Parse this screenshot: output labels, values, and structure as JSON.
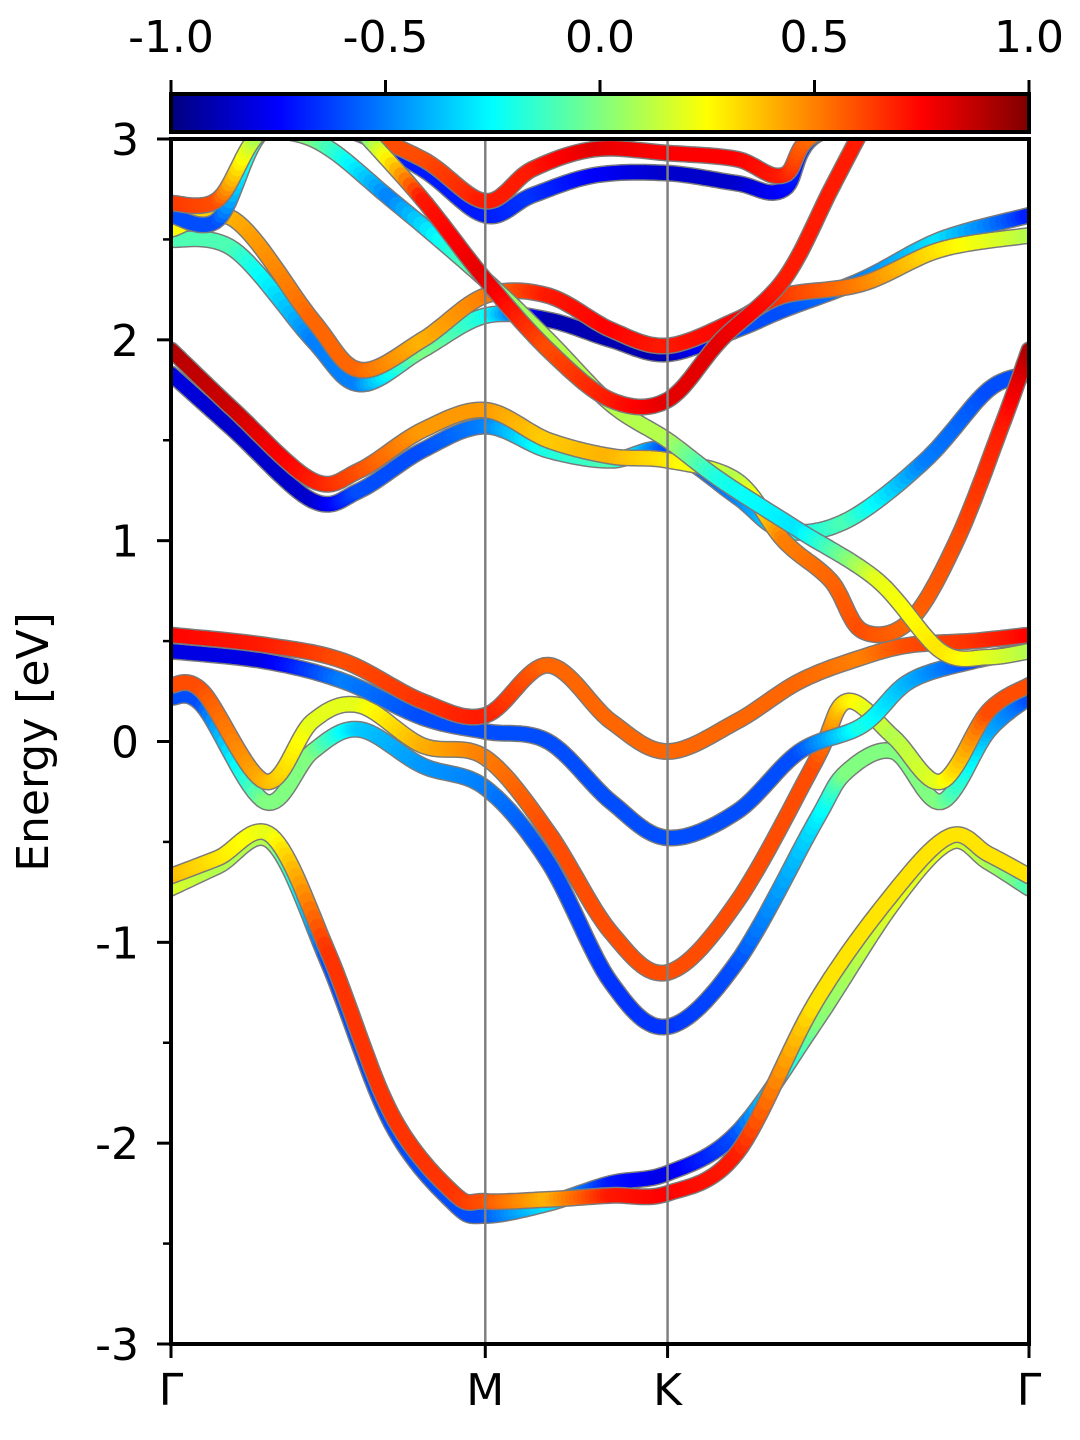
{
  "chart_data": {
    "type": "line",
    "title": "",
    "ylabel": "Energy [eV]",
    "xlabel": "",
    "ylim": [
      -3,
      3
    ],
    "y_ticks": [
      -3,
      -2,
      -1,
      0,
      1,
      2,
      3
    ],
    "y_minor_ticks": [
      -2.5,
      -1.5,
      -0.5,
      0.5,
      1.5,
      2.5
    ],
    "y_tick_labels": [
      "-3",
      "-2",
      "-1",
      "0",
      "1",
      "2",
      "3"
    ],
    "x_path_positions": [
      0,
      1.0,
      1.58,
      2.73
    ],
    "x_tick_labels": [
      "Γ",
      "M",
      "K",
      "Γ"
    ],
    "high_symmetry_lines": [
      1.0,
      1.58
    ],
    "colorbar": {
      "colormap": "jet",
      "range": [
        -1.0,
        1.0
      ],
      "ticks": [
        -1.0,
        -0.5,
        0.0,
        0.5,
        1.0
      ],
      "tick_labels": [
        "-1.0",
        "-0.5",
        "0.0",
        "0.5",
        "1.0"
      ]
    },
    "series": [
      {
        "points": [
          [
            0,
            -0.73
          ],
          [
            0.15,
            -0.62
          ],
          [
            0.32,
            -0.5
          ],
          [
            0.5,
            -1.1
          ],
          [
            0.7,
            -1.9
          ],
          [
            0.9,
            -2.3
          ],
          [
            1.0,
            -2.36
          ],
          [
            1.2,
            -2.3
          ],
          [
            1.4,
            -2.2
          ],
          [
            1.58,
            -2.15
          ],
          [
            1.8,
            -1.95
          ],
          [
            2.05,
            -1.4
          ],
          [
            2.3,
            -0.8
          ],
          [
            2.48,
            -0.5
          ],
          [
            2.6,
            -0.6
          ],
          [
            2.73,
            -0.73
          ]
        ],
        "weights": [
          0.2,
          0.1,
          0.1,
          -0.6,
          -0.6,
          -0.6,
          -0.6,
          -0.3,
          -0.7,
          -0.8,
          -0.6,
          0.0,
          0.2,
          0.2,
          0.1,
          -0.1
        ]
      },
      {
        "points": [
          [
            0,
            -0.67
          ],
          [
            0.15,
            -0.58
          ],
          [
            0.32,
            -0.47
          ],
          [
            0.5,
            -1.05
          ],
          [
            0.7,
            -1.85
          ],
          [
            0.9,
            -2.25
          ],
          [
            1.0,
            -2.29
          ],
          [
            1.2,
            -2.28
          ],
          [
            1.4,
            -2.26
          ],
          [
            1.58,
            -2.25
          ],
          [
            1.8,
            -2.05
          ],
          [
            2.05,
            -1.3
          ],
          [
            2.3,
            -0.75
          ],
          [
            2.48,
            -0.47
          ],
          [
            2.6,
            -0.56
          ],
          [
            2.73,
            -0.67
          ]
        ],
        "weights": [
          0.4,
          0.3,
          0.2,
          0.65,
          0.65,
          0.65,
          0.6,
          0.4,
          0.7,
          0.75,
          0.7,
          0.3,
          0.3,
          0.3,
          0.3,
          0.3
        ]
      },
      {
        "points": [
          [
            0,
            0.22
          ],
          [
            0.1,
            0.18
          ],
          [
            0.3,
            -0.3
          ],
          [
            0.45,
            -0.05
          ],
          [
            0.6,
            0.06
          ],
          [
            0.8,
            -0.12
          ],
          [
            1.0,
            -0.23
          ],
          [
            1.2,
            -0.6
          ],
          [
            1.4,
            -1.2
          ],
          [
            1.58,
            -1.42
          ],
          [
            1.8,
            -1.1
          ],
          [
            2.05,
            -0.4
          ],
          [
            2.15,
            -0.15
          ],
          [
            2.3,
            -0.05
          ],
          [
            2.45,
            -0.3
          ],
          [
            2.6,
            0.05
          ],
          [
            2.73,
            0.22
          ]
        ],
        "weights": [
          -0.6,
          -0.6,
          0.0,
          0.0,
          -0.35,
          -0.45,
          -0.5,
          -0.6,
          -0.65,
          -0.65,
          -0.6,
          -0.3,
          0.0,
          0.0,
          0.0,
          -0.4,
          -0.6
        ]
      },
      {
        "points": [
          [
            0,
            0.28
          ],
          [
            0.1,
            0.25
          ],
          [
            0.3,
            -0.2
          ],
          [
            0.45,
            0.1
          ],
          [
            0.6,
            0.18
          ],
          [
            0.8,
            -0.02
          ],
          [
            1.0,
            -0.08
          ],
          [
            1.2,
            -0.45
          ],
          [
            1.4,
            -0.95
          ],
          [
            1.58,
            -1.15
          ],
          [
            1.8,
            -0.8
          ],
          [
            2.05,
            -0.1
          ],
          [
            2.15,
            0.2
          ],
          [
            2.3,
            0.02
          ],
          [
            2.45,
            -0.2
          ],
          [
            2.6,
            0.15
          ],
          [
            2.73,
            0.28
          ]
        ],
        "weights": [
          0.6,
          0.6,
          0.4,
          0.2,
          0.2,
          0.4,
          0.5,
          0.6,
          0.6,
          0.6,
          0.6,
          0.6,
          0.3,
          0.1,
          0.2,
          0.6,
          0.6
        ]
      },
      {
        "points": [
          [
            0,
            0.45
          ],
          [
            0.3,
            0.4
          ],
          [
            0.55,
            0.3
          ],
          [
            0.8,
            0.12
          ],
          [
            1.0,
            0.05
          ],
          [
            1.2,
            0.0
          ],
          [
            1.4,
            -0.3
          ],
          [
            1.58,
            -0.48
          ],
          [
            1.8,
            -0.35
          ],
          [
            2.0,
            -0.05
          ],
          [
            2.2,
            0.08
          ],
          [
            2.35,
            0.3
          ],
          [
            2.55,
            0.4
          ],
          [
            2.73,
            0.45
          ]
        ],
        "weights": [
          -0.8,
          -0.8,
          -0.5,
          -0.6,
          -0.6,
          -0.6,
          -0.6,
          -0.6,
          -0.6,
          -0.6,
          -0.2,
          -0.4,
          -0.6,
          -0.8
        ]
      },
      {
        "points": [
          [
            0,
            0.53
          ],
          [
            0.3,
            0.48
          ],
          [
            0.55,
            0.4
          ],
          [
            0.8,
            0.2
          ],
          [
            1.0,
            0.13
          ],
          [
            1.2,
            0.38
          ],
          [
            1.4,
            0.1
          ],
          [
            1.58,
            -0.05
          ],
          [
            1.8,
            0.1
          ],
          [
            2.0,
            0.3
          ],
          [
            2.2,
            0.42
          ],
          [
            2.35,
            0.48
          ],
          [
            2.55,
            0.5
          ],
          [
            2.73,
            0.53
          ]
        ],
        "weights": [
          0.75,
          0.7,
          0.6,
          0.65,
          0.7,
          0.55,
          0.55,
          0.55,
          0.55,
          0.55,
          0.5,
          0.6,
          0.65,
          0.75
        ]
      },
      {
        "points": [
          [
            0,
            1.83
          ],
          [
            0.2,
            1.55
          ],
          [
            0.45,
            1.2
          ],
          [
            0.6,
            1.25
          ],
          [
            0.8,
            1.45
          ],
          [
            1.0,
            1.57
          ],
          [
            1.2,
            1.45
          ],
          [
            1.4,
            1.4
          ],
          [
            1.58,
            1.45
          ],
          [
            1.8,
            1.22
          ],
          [
            1.95,
            1.05
          ],
          [
            2.15,
            1.1
          ],
          [
            2.4,
            1.4
          ],
          [
            2.6,
            1.75
          ],
          [
            2.73,
            1.83
          ]
        ],
        "weights": [
          -0.8,
          -0.85,
          -0.85,
          -0.6,
          -0.6,
          -0.5,
          -0.2,
          -0.1,
          -0.6,
          -0.5,
          -0.3,
          -0.1,
          -0.5,
          -0.6,
          -0.6
        ]
      },
      {
        "points": [
          [
            0,
            1.95
          ],
          [
            0.2,
            1.65
          ],
          [
            0.45,
            1.3
          ],
          [
            0.6,
            1.35
          ],
          [
            0.8,
            1.55
          ],
          [
            1.0,
            1.65
          ],
          [
            1.2,
            1.5
          ],
          [
            1.4,
            1.42
          ],
          [
            1.58,
            1.4
          ],
          [
            1.8,
            1.3
          ],
          [
            1.95,
            1.0
          ],
          [
            2.1,
            0.8
          ],
          [
            2.2,
            0.55
          ],
          [
            2.35,
            0.6
          ],
          [
            2.5,
            1.0
          ],
          [
            2.65,
            1.6
          ],
          [
            2.73,
            1.95
          ]
        ],
        "weights": [
          0.9,
          0.85,
          0.7,
          0.6,
          0.45,
          0.45,
          0.35,
          0.4,
          0.3,
          0.1,
          0.5,
          0.55,
          0.6,
          0.55,
          0.6,
          0.7,
          0.9
        ]
      },
      {
        "points": [
          [
            0,
            2.5
          ],
          [
            0.2,
            2.45
          ],
          [
            0.45,
            2.0
          ],
          [
            0.6,
            1.78
          ],
          [
            0.8,
            1.95
          ],
          [
            1.0,
            2.12
          ],
          [
            1.2,
            2.1
          ],
          [
            1.4,
            2.0
          ],
          [
            1.58,
            1.93
          ],
          [
            1.8,
            2.05
          ],
          [
            1.95,
            2.15
          ],
          [
            2.2,
            2.3
          ],
          [
            2.45,
            2.5
          ],
          [
            2.73,
            2.62
          ]
        ],
        "weights": [
          -0.1,
          -0.1,
          -0.5,
          -0.5,
          0.0,
          -0.2,
          -0.9,
          -0.9,
          -0.9,
          -0.6,
          -0.6,
          -0.5,
          -0.3,
          -0.7
        ]
      },
      {
        "points": [
          [
            0,
            2.55
          ],
          [
            0.2,
            2.6
          ],
          [
            0.45,
            2.1
          ],
          [
            0.6,
            1.85
          ],
          [
            0.8,
            2.0
          ],
          [
            1.0,
            2.22
          ],
          [
            1.2,
            2.22
          ],
          [
            1.4,
            2.05
          ],
          [
            1.58,
            1.97
          ],
          [
            1.8,
            2.1
          ],
          [
            1.95,
            2.22
          ],
          [
            2.2,
            2.28
          ],
          [
            2.45,
            2.45
          ],
          [
            2.73,
            2.52
          ]
        ],
        "weights": [
          0.2,
          0.4,
          0.55,
          0.55,
          0.4,
          0.5,
          0.7,
          0.75,
          0.7,
          0.75,
          0.65,
          0.5,
          0.3,
          0.1
        ]
      },
      {
        "points": [
          [
            0,
            2.62
          ],
          [
            0.15,
            2.6
          ],
          [
            0.3,
            3.05
          ],
          [
            0.55,
            3.05
          ],
          [
            0.8,
            2.85
          ],
          [
            1.0,
            2.62
          ],
          [
            1.15,
            2.72
          ],
          [
            1.35,
            2.82
          ],
          [
            1.58,
            2.83
          ],
          [
            1.8,
            2.78
          ],
          [
            1.95,
            2.75
          ],
          [
            2.1,
            3.05
          ],
          [
            2.73,
            3.05
          ]
        ],
        "weights": [
          -0.6,
          -0.6,
          0.0,
          -0.7,
          -0.7,
          -0.7,
          -0.65,
          -0.75,
          -0.85,
          -0.85,
          -0.75,
          -0.6,
          -0.6
        ]
      },
      {
        "points": [
          [
            0,
            2.68
          ],
          [
            0.15,
            2.7
          ],
          [
            0.3,
            3.05
          ],
          [
            0.55,
            3.05
          ],
          [
            0.8,
            2.9
          ],
          [
            1.0,
            2.69
          ],
          [
            1.15,
            2.85
          ],
          [
            1.35,
            2.95
          ],
          [
            1.58,
            2.93
          ],
          [
            1.8,
            2.9
          ],
          [
            1.95,
            2.82
          ],
          [
            2.1,
            3.05
          ],
          [
            2.73,
            3.05
          ]
        ],
        "weights": [
          0.65,
          0.6,
          0.0,
          0.6,
          0.6,
          0.7,
          0.7,
          0.8,
          0.75,
          0.75,
          0.7,
          0.5,
          0.6
        ]
      },
      {
        "points": [
          [
            0.2,
            3.05
          ],
          [
            0.45,
            3.0
          ],
          [
            0.7,
            2.7
          ],
          [
            1.0,
            2.3
          ],
          [
            1.2,
            2.0
          ],
          [
            1.4,
            1.68
          ],
          [
            1.58,
            1.5
          ],
          [
            1.75,
            1.3
          ],
          [
            2.0,
            1.05
          ],
          [
            2.25,
            0.8
          ],
          [
            2.45,
            0.45
          ],
          [
            2.6,
            0.42
          ],
          [
            2.73,
            0.45
          ]
        ],
        "weights": [
          0.0,
          0.0,
          -0.5,
          0.0,
          0.1,
          0.1,
          0.1,
          -0.2,
          -0.3,
          0.2,
          0.3,
          0.2,
          0.1
        ]
      },
      {
        "points": [
          [
            0.6,
            3.05
          ],
          [
            0.8,
            2.7
          ],
          [
            1.0,
            2.3
          ],
          [
            1.2,
            1.95
          ],
          [
            1.4,
            1.7
          ],
          [
            1.58,
            1.7
          ],
          [
            1.75,
            2.0
          ],
          [
            1.95,
            2.3
          ],
          [
            2.1,
            2.75
          ],
          [
            2.2,
            3.05
          ]
        ],
        "weights": [
          -0.2,
          0.7,
          0.8,
          0.6,
          0.7,
          0.8,
          0.8,
          0.7,
          0.7,
          0.7
        ]
      }
    ]
  }
}
